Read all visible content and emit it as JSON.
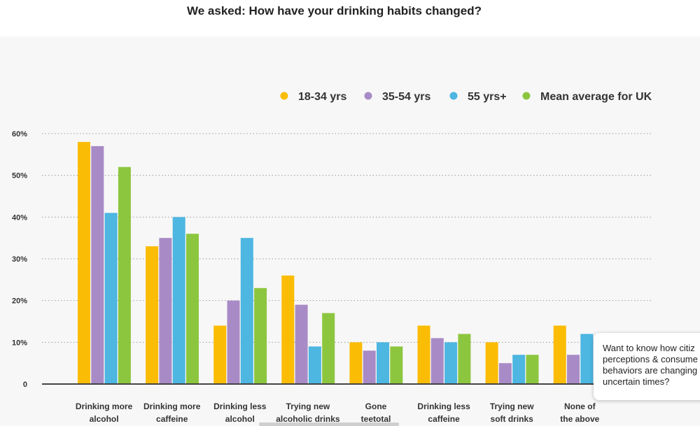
{
  "page": {
    "title": "We asked: How have your drinking habits changed?"
  },
  "popup": {
    "lines": [
      "Want to know how citiz",
      "perceptions & consume",
      "behaviors are changing",
      "uncertain times?"
    ]
  },
  "chart_data": {
    "type": "bar",
    "title": "We asked: How have your drinking habits changed?",
    "xlabel": "",
    "ylabel": "",
    "ylim": [
      0,
      60
    ],
    "yticks": [
      0,
      10,
      20,
      30,
      40,
      50,
      60
    ],
    "ytick_labels": [
      "0",
      "10%",
      "20%",
      "30%",
      "40%",
      "50%",
      "60%"
    ],
    "grid": true,
    "legend_position": "top-right",
    "categories": [
      [
        "Drinking more",
        "alcohol"
      ],
      [
        "Drinking more",
        "caffeine"
      ],
      [
        "Drinking less",
        "alcohol"
      ],
      [
        "Trying new",
        "alcoholic drinks"
      ],
      [
        "Gone",
        "teetotal"
      ],
      [
        "Drinking less",
        "caffeine"
      ],
      [
        "Trying new",
        "soft drinks"
      ],
      [
        "None of",
        "the above"
      ]
    ],
    "series": [
      {
        "name": "18-34 yrs",
        "color": "#fbbc05",
        "values": [
          58,
          33,
          14,
          26,
          10,
          14,
          10,
          14
        ]
      },
      {
        "name": "35-54 yrs",
        "color": "#a88bc6",
        "values": [
          57,
          35,
          20,
          19,
          8,
          11,
          5,
          7
        ]
      },
      {
        "name": "55 yrs+",
        "color": "#4db6e1",
        "values": [
          41,
          40,
          35,
          9,
          10,
          10,
          7,
          12
        ]
      },
      {
        "name": "Mean average for UK",
        "color": "#8cc63f",
        "values": [
          52,
          36,
          23,
          17,
          9,
          12,
          7,
          0
        ]
      }
    ]
  }
}
